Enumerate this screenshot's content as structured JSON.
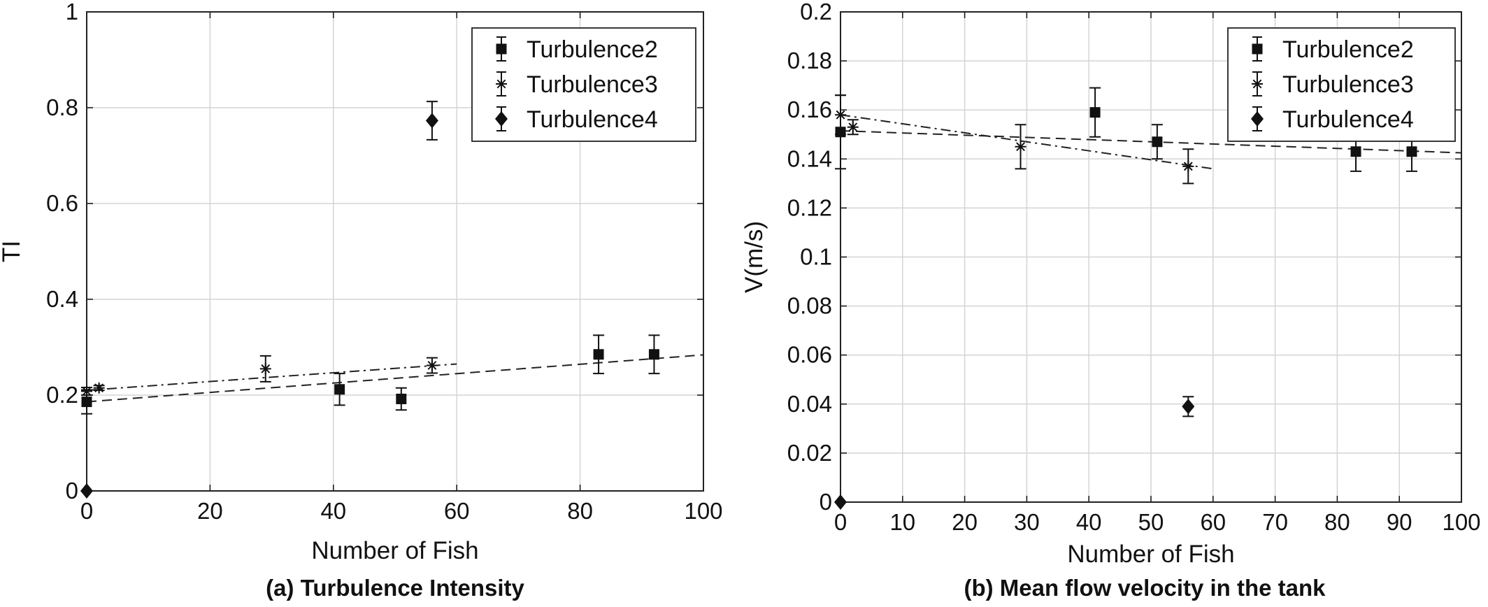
{
  "chart_data": [
    {
      "type": "scatter",
      "caption": "(a) Turbulence Intensity",
      "xlabel": "Number of Fish",
      "ylabel": "TI",
      "xlim": [
        0,
        100
      ],
      "ylim": [
        0,
        1
      ],
      "xticks": [
        0,
        20,
        40,
        60,
        80,
        100
      ],
      "xtick_labels": [
        "0",
        "20",
        "40",
        "60",
        "80",
        "100"
      ],
      "yticks": [
        0,
        0.2,
        0.4,
        0.6,
        0.8,
        1
      ],
      "ytick_labels": [
        "0",
        "0.2",
        "0.4",
        "0.6",
        "0.8",
        "1"
      ],
      "grid": true,
      "legend_position": "top-right",
      "series": [
        {
          "name": "Turbulence2",
          "marker": "square",
          "points": [
            {
              "x": 0,
              "y": 0.186,
              "err": 0.025
            },
            {
              "x": 41,
              "y": 0.212,
              "err": 0.033
            },
            {
              "x": 51,
              "y": 0.192,
              "err": 0.023
            },
            {
              "x": 83,
              "y": 0.285,
              "err": 0.04
            },
            {
              "x": 92,
              "y": 0.285,
              "err": 0.04
            }
          ],
          "trendline": {
            "style": "dashed",
            "x": [
              0,
              100
            ],
            "y": [
              0.186,
              0.284
            ]
          }
        },
        {
          "name": "Turbulence3",
          "marker": "asterisk",
          "points": [
            {
              "x": 0,
              "y": 0.208,
              "err": 0.008
            },
            {
              "x": 2,
              "y": 0.215,
              "err": 0.005
            },
            {
              "x": 29,
              "y": 0.255,
              "err": 0.027
            },
            {
              "x": 56,
              "y": 0.262,
              "err": 0.016
            }
          ],
          "trendline": {
            "style": "dashdot",
            "x": [
              0,
              60
            ],
            "y": [
              0.21,
              0.265
            ]
          }
        },
        {
          "name": "Turbulence4",
          "marker": "diamond",
          "points": [
            {
              "x": 0,
              "y": 0.0,
              "err": 0
            },
            {
              "x": 56,
              "y": 0.773,
              "err": 0.04
            }
          ]
        }
      ]
    },
    {
      "type": "scatter",
      "caption": "(b) Mean flow velocity in the tank",
      "xlabel": "Number of Fish",
      "ylabel": "V(m/s)",
      "xlim": [
        0,
        100
      ],
      "ylim": [
        0,
        0.2
      ],
      "xticks": [
        0,
        10,
        20,
        30,
        40,
        50,
        60,
        70,
        80,
        90,
        100
      ],
      "xtick_labels": [
        "0",
        "10",
        "20",
        "30",
        "40",
        "50",
        "60",
        "70",
        "80",
        "90",
        "100"
      ],
      "yticks": [
        0,
        0.02,
        0.04,
        0.06,
        0.08,
        0.1,
        0.12,
        0.14,
        0.16,
        0.18,
        0.2
      ],
      "ytick_labels": [
        "0",
        "0.02",
        "0.04",
        "0.06",
        "0.08",
        "0.1",
        "0.12",
        "0.14",
        "0.16",
        "0.18",
        "0.2"
      ],
      "grid": true,
      "legend_position": "top-right",
      "series": [
        {
          "name": "Turbulence2",
          "marker": "square",
          "points": [
            {
              "x": 0,
              "y": 0.151,
              "err": 0.015
            },
            {
              "x": 41,
              "y": 0.159,
              "err": 0.01
            },
            {
              "x": 51,
              "y": 0.147,
              "err": 0.007
            },
            {
              "x": 83,
              "y": 0.143,
              "err": 0.008
            },
            {
              "x": 92,
              "y": 0.143,
              "err": 0.008
            }
          ],
          "trendline": {
            "style": "dashed",
            "x": [
              0,
              100
            ],
            "y": [
              0.1515,
              0.1425
            ]
          }
        },
        {
          "name": "Turbulence3",
          "marker": "asterisk",
          "points": [
            {
              "x": 0,
              "y": 0.158,
              "err": 0.008
            },
            {
              "x": 2,
              "y": 0.153,
              "err": 0.003
            },
            {
              "x": 29,
              "y": 0.145,
              "err": 0.009
            },
            {
              "x": 56,
              "y": 0.137,
              "err": 0.007
            }
          ],
          "trendline": {
            "style": "dashdot",
            "x": [
              0,
              60
            ],
            "y": [
              0.158,
              0.136
            ]
          }
        },
        {
          "name": "Turbulence4",
          "marker": "diamond",
          "points": [
            {
              "x": 0,
              "y": 0.0,
              "err": 0
            },
            {
              "x": 56,
              "y": 0.039,
              "err": 0.004
            }
          ]
        }
      ]
    }
  ]
}
